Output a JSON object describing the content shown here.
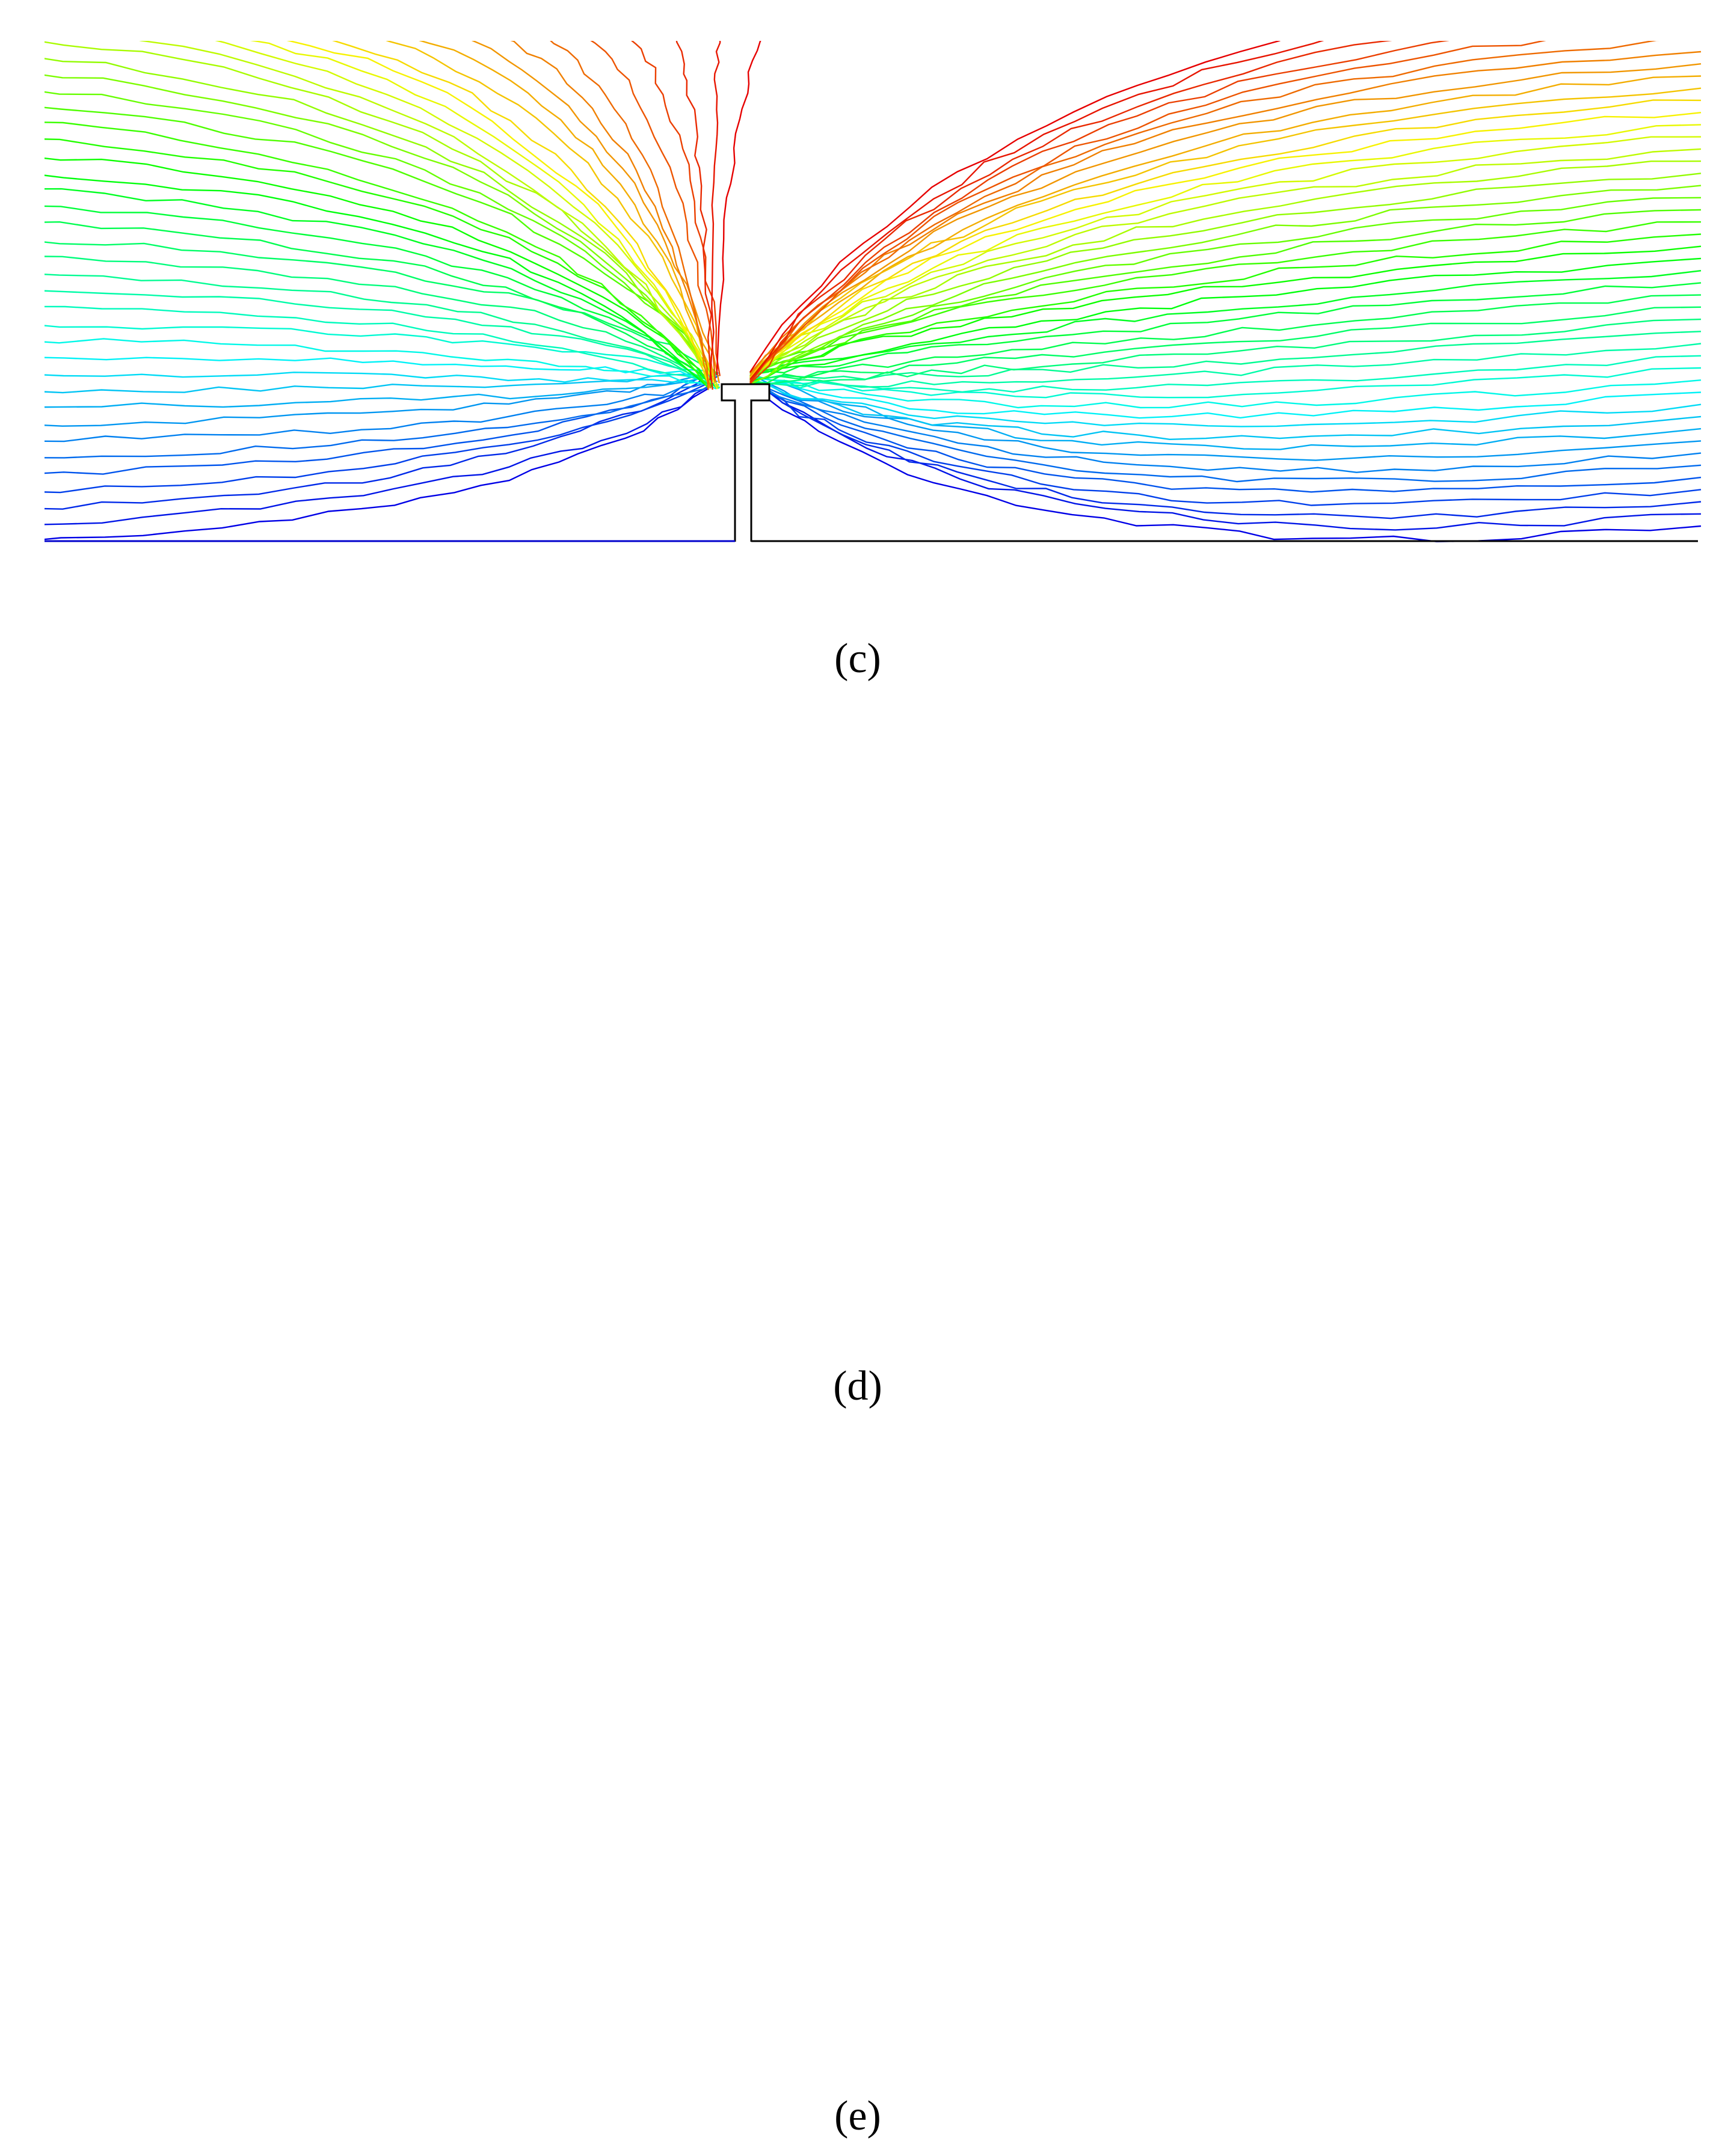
{
  "panels": [
    {
      "label": "(c)"
    },
    {
      "label": "(d)"
    },
    {
      "label": "(e)"
    }
  ]
}
